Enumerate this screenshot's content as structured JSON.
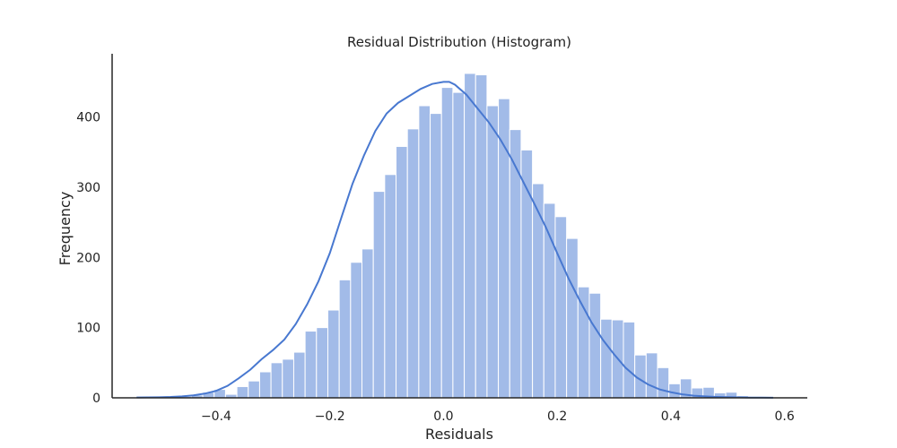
{
  "chart_data": {
    "type": "bar",
    "title": "Residual Distribution (Histogram)",
    "xlabel": "Residuals",
    "ylabel": "Frequency",
    "xlim": [
      -0.583,
      0.64
    ],
    "ylim": [
      0,
      490
    ],
    "grid": false,
    "legend": "none",
    "colors": {
      "bar": "#a2bbe8",
      "kde": "#4878d0",
      "axis": "#262626",
      "text": "#222222"
    },
    "x_ticks": [
      {
        "value": -0.4,
        "label": "−0.4"
      },
      {
        "value": -0.2,
        "label": "−0.2"
      },
      {
        "value": 0.0,
        "label": "0.0"
      },
      {
        "value": 0.2,
        "label": "0.2"
      },
      {
        "value": 0.4,
        "label": "0.4"
      },
      {
        "value": 0.6,
        "label": "0.6"
      }
    ],
    "y_ticks": [
      {
        "value": 0,
        "label": "0"
      },
      {
        "value": 100,
        "label": "100"
      },
      {
        "value": 200,
        "label": "200"
      },
      {
        "value": 300,
        "label": "300"
      },
      {
        "value": 400,
        "label": "400"
      }
    ],
    "bin_start": -0.5435,
    "bin_width": 0.02,
    "bin_counts": [
      0,
      0,
      0,
      1,
      2,
      4,
      8,
      12,
      5,
      16,
      24,
      37,
      50,
      55,
      65,
      95,
      100,
      125,
      168,
      193,
      212,
      294,
      318,
      358,
      383,
      416,
      405,
      442,
      435,
      462,
      460,
      416,
      426,
      382,
      353,
      305,
      277,
      258,
      227,
      158,
      149,
      112,
      111,
      108,
      61,
      64,
      43,
      20,
      27,
      14,
      15,
      7,
      8,
      3,
      1,
      0,
      0,
      0
    ],
    "kde": {
      "x": [
        -0.54,
        -0.52,
        -0.5,
        -0.48,
        -0.46,
        -0.44,
        -0.42,
        -0.4,
        -0.38,
        -0.36,
        -0.34,
        -0.32,
        -0.3,
        -0.28,
        -0.26,
        -0.24,
        -0.22,
        -0.2,
        -0.18,
        -0.16,
        -0.14,
        -0.12,
        -0.1,
        -0.08,
        -0.06,
        -0.04,
        -0.02,
        0.0,
        0.01,
        0.02,
        0.04,
        0.06,
        0.08,
        0.1,
        0.12,
        0.14,
        0.16,
        0.18,
        0.2,
        0.22,
        0.24,
        0.26,
        0.28,
        0.3,
        0.32,
        0.34,
        0.36,
        0.38,
        0.4,
        0.42,
        0.44,
        0.46,
        0.48,
        0.5,
        0.52,
        0.54,
        0.56,
        0.58
      ],
      "y": [
        0.5,
        0.6,
        0.8,
        1.2,
        2,
        3.5,
        6,
        10,
        17,
        28,
        40,
        55,
        68,
        83,
        105,
        133,
        166,
        206,
        256,
        305,
        345,
        380,
        405,
        420,
        430,
        440,
        447,
        450,
        450,
        446,
        432,
        412,
        392,
        368,
        340,
        308,
        276,
        243,
        206,
        170,
        138,
        108,
        83,
        62,
        43,
        29,
        19,
        12,
        8,
        5,
        3,
        2,
        1.3,
        0.9,
        0.6,
        0.4,
        0.3,
        0.2
      ]
    }
  }
}
